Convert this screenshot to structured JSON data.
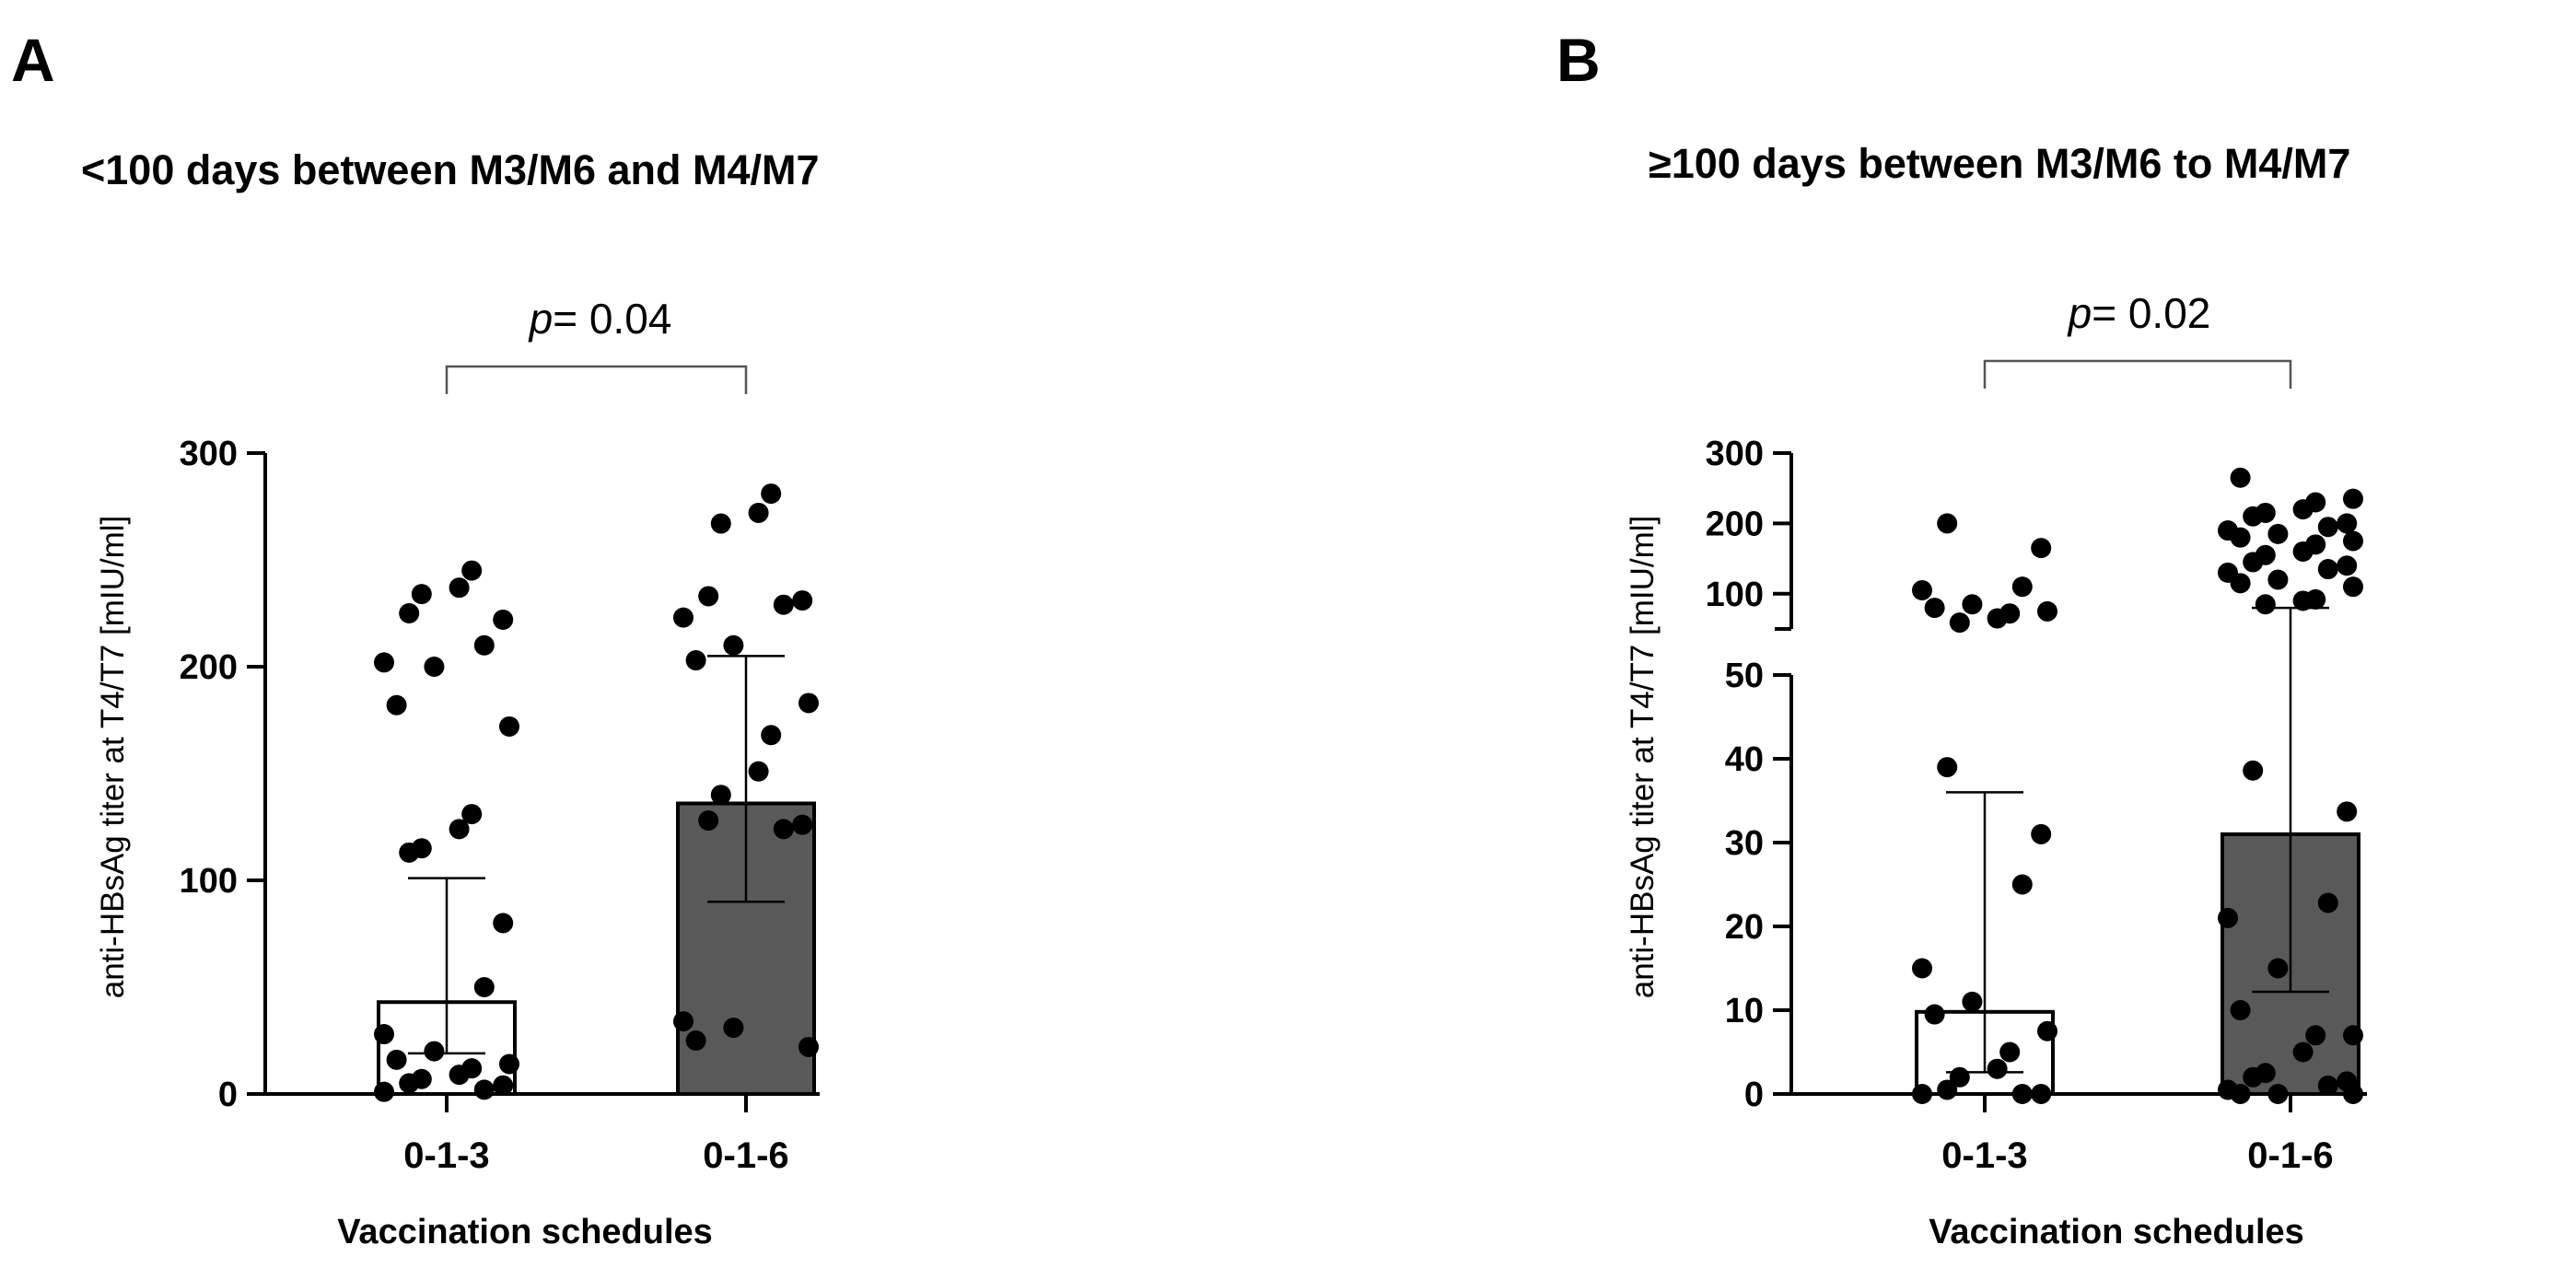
{
  "chart_data": [
    {
      "type": "bar",
      "panel": "A",
      "title": "<100 days between M3/M6 and M4/M7",
      "xlabel": "Vaccination schedules",
      "ylabel": "anti-HBsAg titer at T4/T7 [mIU/ml]",
      "ylim": [
        0,
        300
      ],
      "yticks": [
        "0",
        "100",
        "200",
        "300"
      ],
      "categories": [
        "0-1-3",
        "0-1-6"
      ],
      "colors": [
        "#ffffff",
        "#595959"
      ],
      "values": [
        43,
        136
      ],
      "error_low": [
        19,
        90
      ],
      "error_high": [
        101,
        205
      ],
      "points": [
        [
          1,
          2,
          4,
          5,
          7,
          9,
          12,
          14,
          16,
          20,
          28,
          50,
          80,
          113,
          115,
          124,
          131,
          172,
          182,
          200,
          202,
          210,
          222,
          225,
          234,
          237,
          245
        ],
        [
          22,
          25,
          31,
          34,
          124,
          126,
          128,
          140,
          151,
          168,
          183,
          203,
          210,
          223,
          229,
          231,
          233,
          267,
          272,
          281
        ]
      ],
      "annotation": {
        "p_label": "p",
        "p_value": "= 0.04"
      }
    },
    {
      "type": "bar",
      "panel": "B",
      "title": "≥100 days between M3/M6 to M4/M7",
      "xlabel": "Vaccination schedules",
      "ylabel": "anti-HBsAg titer at T4/T7 [mIU/ml]",
      "axis_break": {
        "lower": [
          0,
          50
        ],
        "upper": [
          50,
          300
        ]
      },
      "yticks_lower": [
        "0",
        "10",
        "20",
        "30",
        "40",
        "50"
      ],
      "yticks_upper": [
        "100",
        "200",
        "300"
      ],
      "categories": [
        "0-1-3",
        "0-1-6"
      ],
      "colors": [
        "#ffffff",
        "#595959"
      ],
      "values": [
        9.8,
        31
      ],
      "error_low": [
        2.6,
        12.2
      ],
      "error_high": [
        36,
        80
      ],
      "points": [
        [
          0,
          0,
          0,
          0.5,
          2,
          3,
          5,
          7.5,
          9.5,
          11,
          15,
          25,
          31,
          39,
          59,
          65,
          72,
          75,
          80,
          85,
          105,
          110,
          165,
          200
        ],
        [
          0,
          0,
          0,
          0.5,
          1,
          1.5,
          2,
          2.5,
          5,
          7,
          7,
          10,
          15,
          21,
          22.8,
          33.7,
          38.6,
          85,
          90,
          92,
          110,
          115,
          120,
          130,
          135,
          140,
          145,
          155,
          160,
          170,
          175,
          180,
          185,
          190,
          195,
          200,
          210,
          215,
          220,
          230,
          235,
          265
        ]
      ],
      "annotation": {
        "p_label": "p",
        "p_value": "= 0.02"
      }
    }
  ]
}
